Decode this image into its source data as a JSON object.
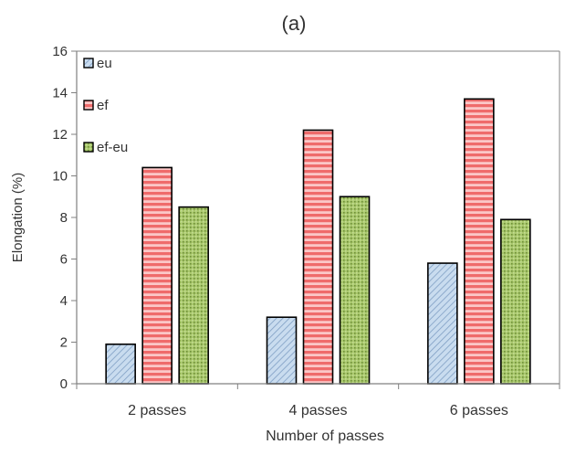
{
  "chart_data": {
    "type": "bar",
    "title": "(a)",
    "xlabel": "Number of passes",
    "ylabel": "Elongation (%)",
    "categories": [
      "2 passes",
      "4 passes",
      "6 passes"
    ],
    "series": [
      {
        "name": "eu",
        "values": [
          1.9,
          3.2,
          5.8
        ],
        "color": "#bcd3ea",
        "pattern": "diagonal-hatch"
      },
      {
        "name": "ef",
        "values": [
          10.4,
          12.2,
          13.7
        ],
        "color": "#f27c7c",
        "pattern": "horizontal-stripes"
      },
      {
        "name": "ef-eu",
        "values": [
          8.5,
          9.0,
          7.9
        ],
        "color": "#9cbf5e",
        "pattern": "dotted"
      }
    ],
    "ylim": [
      0,
      16
    ],
    "yticks": [
      0,
      2,
      4,
      6,
      8,
      10,
      12,
      14,
      16
    ],
    "grid": false,
    "legend_position": "top-left"
  }
}
